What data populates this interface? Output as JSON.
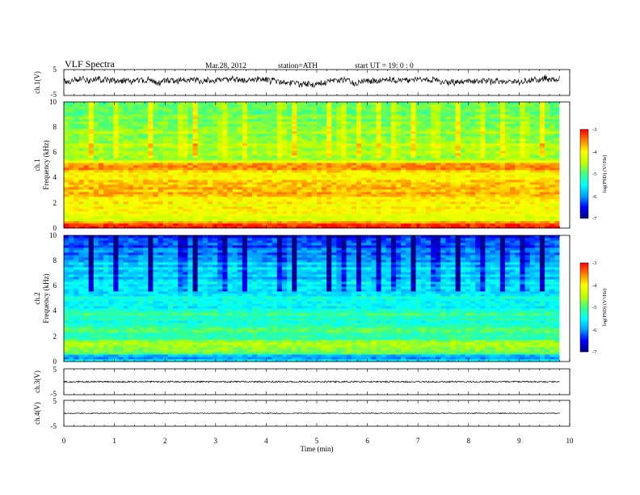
{
  "header": {
    "title": "VLF  Spectra",
    "date": "Mar.28, 2012",
    "station": "station=ATH",
    "start": "start  UT =   19: 0  : 0"
  },
  "chart_data": [
    {
      "type": "line",
      "name": "ch1-waveform",
      "ylabel": "ch.1(V)",
      "xlim": [
        0,
        10
      ],
      "ylim": [
        -5,
        5
      ],
      "yticks": [
        "5",
        "-5"
      ],
      "data_end_min": 9.8,
      "trace": {
        "mean": 0.6,
        "amplitude": 2.2,
        "wander": 1.1
      }
    },
    {
      "type": "heatmap",
      "name": "ch1-spectrogram",
      "ylabel": "Frequency  (kHz)",
      "channel_label": "ch.1",
      "xlim": [
        0,
        10
      ],
      "ylim": [
        0,
        10
      ],
      "yticks": [
        "10",
        "8",
        "6",
        "4",
        "2",
        "0"
      ],
      "value_label": "log(PSD) (V²/Hz)",
      "colorbar_range": [
        -7,
        -3
      ],
      "colorbar_ticks": [
        "-3",
        "-4",
        "-5",
        "-6",
        "-7"
      ],
      "freq_profile": [
        {
          "f": 0.0,
          "v": -3.2
        },
        {
          "f": 0.3,
          "v": -3.3
        },
        {
          "f": 0.6,
          "v": -4.1
        },
        {
          "f": 1.0,
          "v": -4.2
        },
        {
          "f": 1.5,
          "v": -4.1
        },
        {
          "f": 2.0,
          "v": -4.0
        },
        {
          "f": 2.5,
          "v": -3.8
        },
        {
          "f": 3.0,
          "v": -3.7
        },
        {
          "f": 3.5,
          "v": -3.8
        },
        {
          "f": 4.0,
          "v": -4.0
        },
        {
          "f": 4.5,
          "v": -3.8
        },
        {
          "f": 4.8,
          "v": -3.5
        },
        {
          "f": 5.0,
          "v": -3.4
        },
        {
          "f": 5.3,
          "v": -4.3
        },
        {
          "f": 5.8,
          "v": -4.7
        },
        {
          "f": 6.5,
          "v": -4.5
        },
        {
          "f": 7.5,
          "v": -4.7
        },
        {
          "f": 8.5,
          "v": -4.8
        },
        {
          "f": 10.0,
          "v": -4.9
        }
      ],
      "bursts_min": [
        0.55,
        1.05,
        1.7,
        2.35,
        2.6,
        3.15,
        3.55,
        4.3,
        4.55,
        5.25,
        5.5,
        5.85,
        6.2,
        6.55,
        6.9,
        7.35,
        7.8,
        8.25,
        8.7,
        9.1,
        9.45
      ]
    },
    {
      "type": "heatmap",
      "name": "ch2-spectrogram",
      "ylabel": "Frequency  (kHz)",
      "channel_label": "ch.2",
      "xlim": [
        0,
        10
      ],
      "ylim": [
        0,
        10
      ],
      "yticks": [
        "10",
        "8",
        "6",
        "4",
        "2",
        "0"
      ],
      "value_label": "log(PSD) (V²/Hz)",
      "colorbar_range": [
        -7,
        -3
      ],
      "colorbar_ticks": [
        "-3",
        "-4",
        "-5",
        "-6",
        "-7"
      ],
      "freq_profile": [
        {
          "f": 0.0,
          "v": -5.6
        },
        {
          "f": 0.4,
          "v": -6.0
        },
        {
          "f": 0.8,
          "v": -4.7
        },
        {
          "f": 1.2,
          "v": -4.5
        },
        {
          "f": 1.6,
          "v": -4.8
        },
        {
          "f": 2.0,
          "v": -5.2
        },
        {
          "f": 2.6,
          "v": -5.0
        },
        {
          "f": 3.2,
          "v": -5.4
        },
        {
          "f": 3.8,
          "v": -5.1
        },
        {
          "f": 4.4,
          "v": -5.6
        },
        {
          "f": 5.0,
          "v": -5.3
        },
        {
          "f": 5.6,
          "v": -5.7
        },
        {
          "f": 6.2,
          "v": -5.4
        },
        {
          "f": 6.6,
          "v": -5.8
        },
        {
          "f": 7.2,
          "v": -5.6
        },
        {
          "f": 8.0,
          "v": -5.9
        },
        {
          "f": 9.0,
          "v": -6.2
        },
        {
          "f": 10.0,
          "v": -6.3
        }
      ],
      "bursts_min": [
        0.55,
        1.05,
        1.7,
        2.35,
        2.6,
        3.15,
        3.55,
        4.3,
        4.55,
        5.25,
        5.5,
        5.85,
        6.2,
        6.55,
        6.9,
        7.35,
        7.8,
        8.25,
        8.7,
        9.1,
        9.45
      ]
    },
    {
      "type": "line",
      "name": "ch3-waveform",
      "ylabel": "ch.3(V)",
      "xlim": [
        0,
        10
      ],
      "ylim": [
        -5,
        5
      ],
      "yticks": [
        "5",
        "-5"
      ],
      "data_end_min": 9.8,
      "trace": {
        "mean": 0.0,
        "amplitude": 0.6,
        "wander": 0.0
      }
    },
    {
      "type": "line",
      "name": "ch4-waveform",
      "ylabel": "ch.4(V)",
      "xlim": [
        0,
        10
      ],
      "ylim": [
        -5,
        5
      ],
      "yticks": [
        "5",
        "-5"
      ],
      "data_end_min": 9.8,
      "trace": {
        "mean": 0.0,
        "amplitude": 0.35,
        "wander": 0.0
      }
    }
  ],
  "x_axis": {
    "label": "Time  (min)",
    "ticks": [
      "0",
      "1",
      "2",
      "3",
      "4",
      "5",
      "6",
      "7",
      "8",
      "9",
      "10"
    ]
  },
  "colors": {
    "colormap": [
      "#000080",
      "#0000ff",
      "#00a0ff",
      "#00ffff",
      "#40ff80",
      "#c0ff00",
      "#ffff00",
      "#ff8000",
      "#ff0000"
    ],
    "trace": "#000000",
    "background": "#ffffff"
  }
}
